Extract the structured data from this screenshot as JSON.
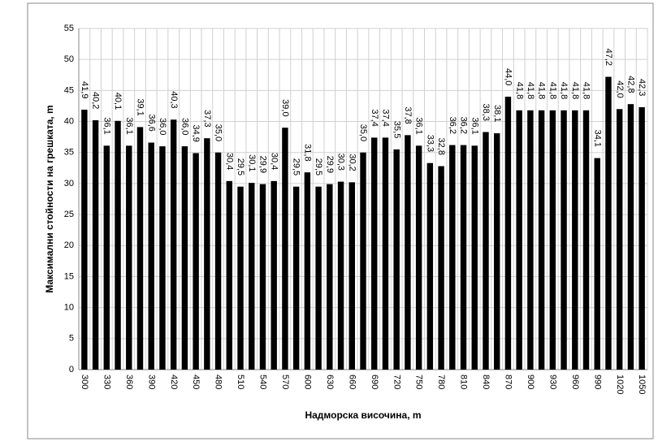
{
  "chart_data": {
    "type": "bar",
    "x_label": "Надморска височина, m",
    "y_label": "Максимални стойности на грешката, m",
    "categories": [
      300,
      null,
      330,
      null,
      360,
      null,
      390,
      null,
      420,
      null,
      450,
      null,
      480,
      null,
      510,
      null,
      540,
      null,
      570,
      null,
      600,
      null,
      630,
      null,
      660,
      null,
      690,
      null,
      720,
      null,
      750,
      null,
      780,
      null,
      810,
      null,
      840,
      null,
      870,
      null,
      900,
      null,
      930,
      null,
      960,
      null,
      990,
      null,
      1020,
      null,
      1050
    ],
    "values": [
      41.9,
      40.2,
      36.1,
      40.1,
      36.1,
      39.1,
      36.6,
      36.0,
      40.3,
      36.0,
      34.9,
      37.3,
      35.0,
      30.4,
      29.5,
      30.1,
      29.9,
      30.4,
      39.0,
      29.5,
      31.8,
      29.5,
      29.9,
      30.3,
      30.2,
      35.0,
      37.4,
      37.4,
      35.5,
      37.8,
      36.1,
      33.3,
      32.8,
      36.2,
      36.2,
      36.1,
      38.3,
      38.1,
      44.0,
      41.8,
      41.8,
      41.8,
      41.8,
      41.8,
      41.8,
      41.8,
      34.1,
      47.2,
      42.0,
      42.8,
      42.3
    ],
    "value_labels": [
      "41,9",
      "40,2",
      "36,1",
      "40,1",
      "36,1",
      "39,1",
      "36,6",
      "36,0",
      "40,3",
      "36,0",
      "34,9",
      "37,3",
      "35,0",
      "30,4",
      "29,5",
      "30,1",
      "29,9",
      "30,4",
      "39,0",
      "29,5",
      "31,8",
      "29,5",
      "29,9",
      "30,3",
      "30,2",
      "35,0",
      "37,4",
      "37,4",
      "35,5",
      "37,8",
      "36,1",
      "33,3",
      "32,8",
      "36,2",
      "36,2",
      "36,1",
      "38,3",
      "38,1",
      "44,0",
      "41,8",
      "41,8",
      "41,8",
      "41,8",
      "41,8",
      "41,8",
      "41,8",
      "34,1",
      "47,2",
      "42,0",
      "42,8",
      "42,3"
    ],
    "color": "#000000",
    "ylim": [
      0,
      55
    ],
    "yticks": [
      0,
      5,
      10,
      15,
      20,
      25,
      30,
      35,
      40,
      45,
      50,
      55
    ],
    "grid": true
  }
}
